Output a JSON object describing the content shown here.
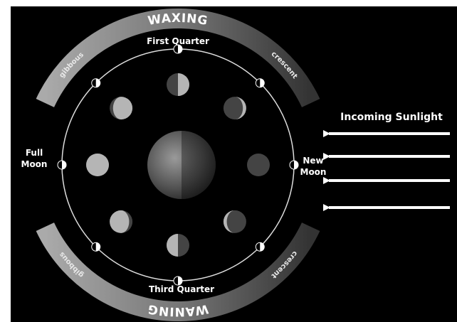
{
  "arcs": {
    "waxing": {
      "title": "WAXING",
      "left": "gibbous",
      "right": "crescent"
    },
    "waning": {
      "title": "WANING",
      "left": "gibbous",
      "right": "crescent"
    }
  },
  "phases": {
    "first_quarter": "First Quarter",
    "third_quarter": "Third Quarter",
    "full_moon": [
      "Full",
      "Moon"
    ],
    "new_moon": [
      "New",
      "Moon"
    ]
  },
  "sunlight": "Incoming Sunlight"
}
